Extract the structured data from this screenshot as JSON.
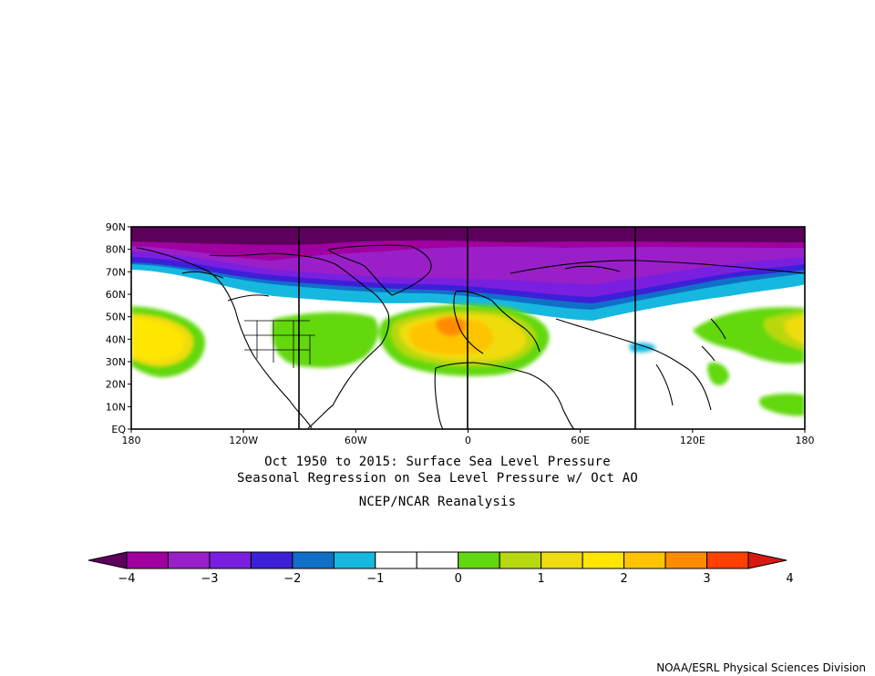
{
  "map": {
    "lat_labels": [
      "90N",
      "80N",
      "70N",
      "60N",
      "50N",
      "40N",
      "30N",
      "20N",
      "10N",
      "EQ"
    ],
    "lon_labels": [
      "180",
      "120W",
      "60W",
      "0",
      "60E",
      "120E",
      "180"
    ]
  },
  "captions": {
    "line1": "Oct 1950 to 2015: Surface Sea Level Pressure",
    "line2": "Seasonal Regression on Sea Level Pressure  w/ Oct AO",
    "line3": "NCEP/NCAR Reanalysis"
  },
  "colorbar": {
    "colors": [
      "#5c005c",
      "#a000a0",
      "#9a1fc8",
      "#7a1fe0",
      "#3c20d8",
      "#1070c8",
      "#16b8e0",
      "#ffffff",
      "#ffffff",
      "#62d810",
      "#b8d810",
      "#f0dc10",
      "#ffe600",
      "#ffc400",
      "#ff8c00",
      "#ff4000",
      "#d81a14"
    ],
    "tick_labels": [
      "−4",
      "−3",
      "−2",
      "−1",
      "0",
      "1",
      "2",
      "3",
      "4"
    ]
  },
  "credit": "NOAA/ESRL Physical Sciences Division",
  "chart_data": {
    "type": "heatmap",
    "title": "Oct 1950 to 2015: Surface Sea Level Pressure",
    "xlabel": "",
    "ylabel": "",
    "xlim": [
      -180,
      180
    ],
    "ylim": [
      0,
      90
    ],
    "color_scale": [
      -4,
      4
    ],
    "levels": [
      -4,
      -3.5,
      -3,
      -2.5,
      -2,
      -1.5,
      -1,
      -0.5,
      0,
      0.5,
      1,
      1.5,
      2,
      2.5,
      3,
      3.5,
      4
    ],
    "features": [
      {
        "name": "polar-low",
        "lon": 0,
        "lat": 85,
        "value": -4
      },
      {
        "name": "greenland-low",
        "lon": -45,
        "lat": 75,
        "value": -3
      },
      {
        "name": "pacific-high",
        "lon": -165,
        "lat": 45,
        "value": 2.2
      },
      {
        "name": "atlantic-high",
        "lon": -20,
        "lat": 45,
        "value": 2.8
      },
      {
        "name": "europe-high",
        "lon": 15,
        "lat": 47,
        "value": 2.2
      },
      {
        "name": "west-pacific-high",
        "lon": 170,
        "lat": 42,
        "value": 1.6
      }
    ]
  }
}
